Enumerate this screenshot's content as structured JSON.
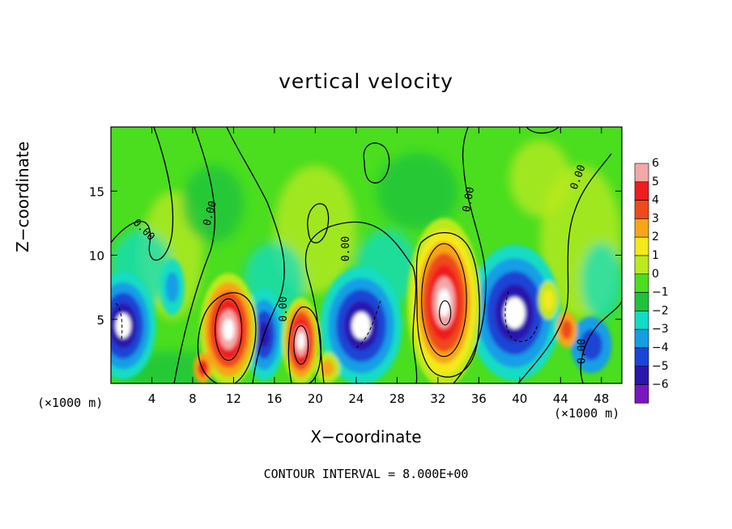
{
  "chart_data": {
    "type": "heatmap",
    "title": "vertical velocity",
    "xlabel": "X−coordinate",
    "ylabel": "Z−coordinate",
    "x_unit": "(×1000 m)",
    "footer": "CONTOUR INTERVAL = 8.000E+00",
    "xlim": [
      0,
      50
    ],
    "ylim": [
      0,
      20
    ],
    "x_ticks": [
      4,
      8,
      12,
      16,
      20,
      24,
      28,
      32,
      36,
      40,
      44,
      48
    ],
    "x_tick_labels": [
      "4",
      "8",
      "12",
      "16",
      "20",
      "24",
      "28",
      "32",
      "36",
      "40",
      "44",
      "48"
    ],
    "y_ticks": [
      5,
      10,
      15
    ],
    "y_tick_labels": [
      "5",
      "10",
      "15"
    ],
    "colorbar": {
      "levels": [
        6,
        5,
        4,
        3,
        2,
        1,
        0,
        -1,
        -2,
        -3,
        -4,
        -5,
        -6
      ],
      "labels": [
        "6",
        "5",
        "4",
        "3",
        "2",
        "1",
        "0",
        "−1",
        "−2",
        "−3",
        "−4",
        "−5",
        "−6"
      ],
      "colors": [
        "#f4a7a7",
        "#ef1d1d",
        "#f04a1c",
        "#f7a519",
        "#f4e91a",
        "#bde91f",
        "#4ade1f",
        "#1ec23c",
        "#13dcc4",
        "#139ee6",
        "#1b45d6",
        "#2a16ae",
        "#7a16c0"
      ]
    },
    "contour_labels": [
      "0.00",
      "0.00",
      "0.00",
      "0.00",
      "0.00",
      "0.00",
      "0.00",
      "0.00"
    ],
    "features": [
      {
        "type": "updraft",
        "x": 11.5,
        "z": 4,
        "value": 6
      },
      {
        "type": "updraft",
        "x": 18.5,
        "z": 3,
        "value": 6
      },
      {
        "type": "updraft",
        "x": 32.5,
        "z": 5.5,
        "value": 6
      },
      {
        "type": "updraft",
        "x": 9,
        "z": 1,
        "value": 4
      },
      {
        "type": "updraft",
        "x": 44.5,
        "z": 4,
        "value": 4
      },
      {
        "type": "downdraft",
        "x": 1,
        "z": 5,
        "value": -6
      },
      {
        "type": "downdraft",
        "x": 24,
        "z": 4,
        "value": -6
      },
      {
        "type": "downdraft",
        "x": 40,
        "z": 5,
        "value": -6
      },
      {
        "type": "downdraft",
        "x": 15,
        "z": 3.5,
        "value": -5
      }
    ]
  }
}
